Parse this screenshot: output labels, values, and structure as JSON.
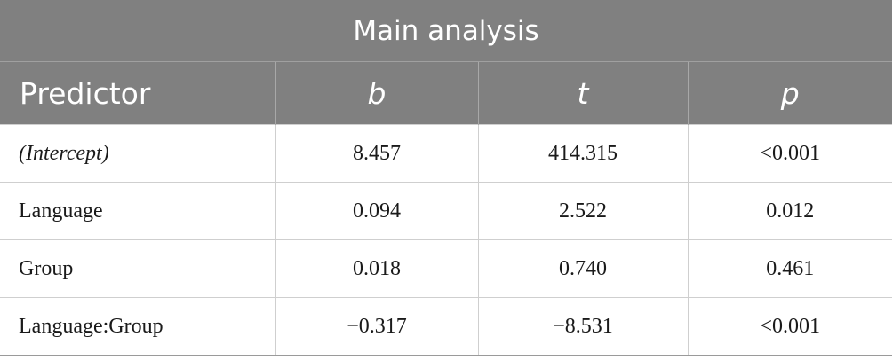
{
  "table": {
    "title": "Main analysis",
    "headers": [
      "Predictor",
      "b",
      "t",
      "p"
    ],
    "rows": [
      [
        "(Intercept)",
        "8.457",
        "414.315",
        "<0.001"
      ],
      [
        "Language",
        "0.094",
        "2.522",
        "0.012"
      ],
      [
        "Group",
        "0.018",
        "0.740",
        "0.461"
      ],
      [
        "Language:Group",
        "−0.317",
        "−8.531",
        "<0.001"
      ]
    ]
  },
  "colors": {
    "header_bg": "#808080",
    "header_text": "#ffffff",
    "grid": "#cfcfcf"
  }
}
